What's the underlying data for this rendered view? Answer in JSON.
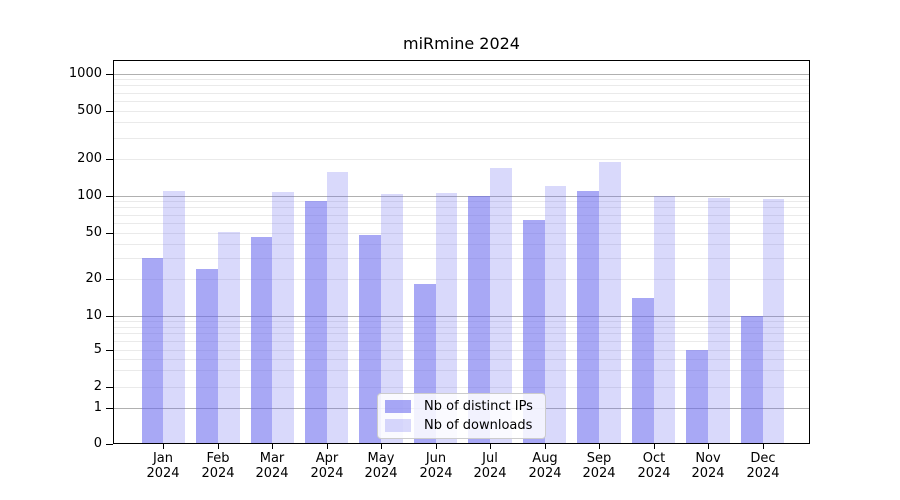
{
  "title": "miRmine 2024",
  "chart_data": {
    "type": "bar",
    "title": "miRmine 2024",
    "categories": [
      "Jan",
      "Feb",
      "Mar",
      "Apr",
      "May",
      "Jun",
      "Jul",
      "Aug",
      "Sep",
      "Oct",
      "Nov",
      "Dec"
    ],
    "year_label": "2024",
    "series": [
      {
        "name": "Nb of distinct IPs",
        "color": "rgba(102,102,238,0.57)",
        "values": [
          30,
          24,
          46,
          90,
          48,
          18,
          99,
          63,
          108,
          14,
          5,
          10
        ]
      },
      {
        "name": "Nb of downloads",
        "color": "rgba(102,102,238,0.25)",
        "values": [
          110,
          51,
          107,
          157,
          103,
          105,
          170,
          121,
          190,
          100,
          96,
          94
        ]
      }
    ],
    "y_scale": "symlog",
    "y_ticks": [
      0,
      1,
      2,
      5,
      10,
      20,
      50,
      100,
      200,
      500,
      1000
    ],
    "ylim": [
      0,
      1000
    ],
    "grid": true,
    "legend_position": "lower center",
    "colors": {
      "background": "#ffffff",
      "grid_major": "#b0b0b0",
      "grid_minor": "#eaeaea",
      "axis": "#000000",
      "text": "#000000"
    }
  },
  "legend": {
    "items": [
      {
        "label": "Nb of distinct IPs"
      },
      {
        "label": "Nb of downloads"
      }
    ]
  }
}
